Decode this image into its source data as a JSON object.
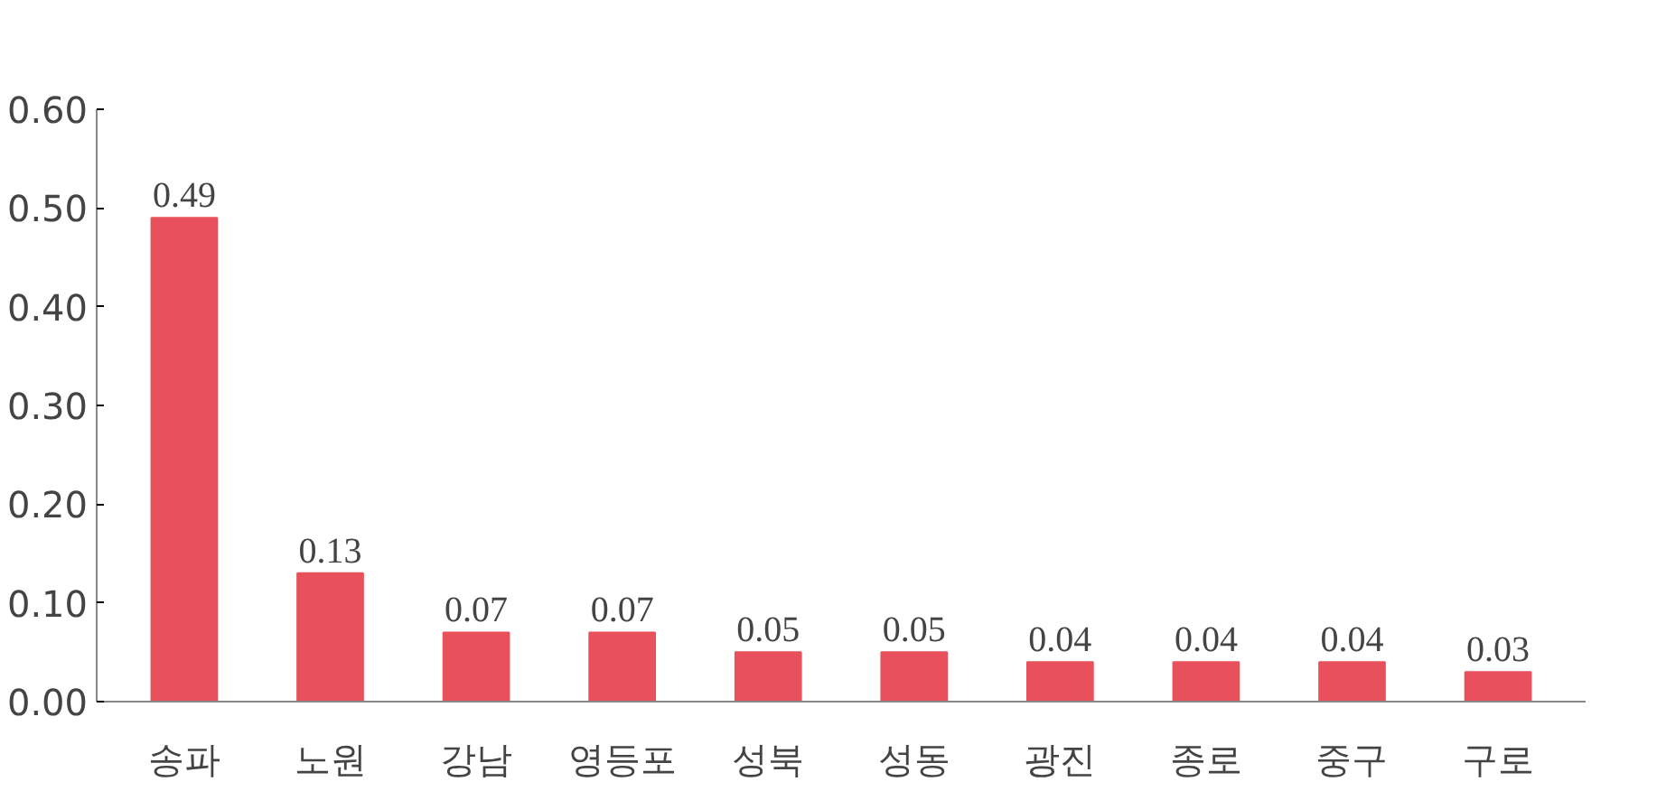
{
  "chart_data": {
    "type": "bar",
    "categories": [
      "송파",
      "노원",
      "강남",
      "영등포",
      "성북",
      "성동",
      "광진",
      "종로",
      "중구",
      "구로"
    ],
    "values": [
      0.49,
      0.13,
      0.07,
      0.07,
      0.05,
      0.05,
      0.04,
      0.04,
      0.04,
      0.03
    ],
    "color": "#e8505b",
    "data_labels": true,
    "grid": false,
    "ylim": [
      0,
      0.6
    ],
    "yticks": [
      {
        "value": 0,
        "label": "0.00"
      },
      {
        "value": 0.1,
        "label": "0.10"
      },
      {
        "value": 0.2,
        "label": "0.20"
      },
      {
        "value": 0.3,
        "label": "0.30"
      },
      {
        "value": 0.4,
        "label": "0.40"
      },
      {
        "value": 0.5,
        "label": "0.50"
      },
      {
        "value": 0.6,
        "label": "0.60"
      }
    ]
  }
}
